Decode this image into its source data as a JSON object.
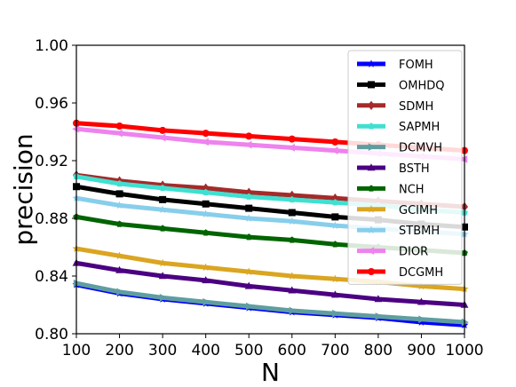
{
  "chart_data": {
    "type": "line",
    "title": "",
    "xlabel": "N",
    "ylabel": "precision",
    "xlim": [
      100,
      1000
    ],
    "ylim": [
      0.8,
      1.0
    ],
    "x": [
      100,
      200,
      300,
      400,
      500,
      600,
      700,
      800,
      900,
      1000
    ],
    "x_tick_labels": [
      "100",
      "200",
      "300",
      "400",
      "500",
      "600",
      "700",
      "800",
      "900",
      "1000"
    ],
    "y_ticks": [
      0.8,
      0.84,
      0.88,
      0.92,
      0.96,
      1.0
    ],
    "y_tick_labels": [
      "0.80",
      "0.84",
      "0.88",
      "0.92",
      "0.96",
      "1.00"
    ],
    "grid": false,
    "legend_position": "right",
    "series": [
      {
        "name": "FOMH",
        "color": "#0000ff",
        "marker": "star",
        "values": [
          0.834,
          0.828,
          0.824,
          0.821,
          0.818,
          0.815,
          0.813,
          0.811,
          0.808,
          0.806
        ]
      },
      {
        "name": "OMHDQ",
        "color": "#000000",
        "marker": "square",
        "values": [
          0.902,
          0.897,
          0.893,
          0.89,
          0.887,
          0.884,
          0.881,
          0.879,
          0.876,
          0.874
        ]
      },
      {
        "name": "SDMH",
        "color": "#a52a2a",
        "marker": "diamond",
        "values": [
          0.91,
          0.906,
          0.903,
          0.901,
          0.898,
          0.896,
          0.894,
          0.892,
          0.89,
          0.888
        ]
      },
      {
        "name": "SAPMH",
        "color": "#40e0d0",
        "marker": "pentagon",
        "values": [
          0.909,
          0.904,
          0.901,
          0.898,
          0.895,
          0.893,
          0.891,
          0.889,
          0.886,
          0.884
        ]
      },
      {
        "name": "DCMVH",
        "color": "#5f9ea0",
        "marker": "triangle-right",
        "values": [
          0.835,
          0.829,
          0.825,
          0.822,
          0.819,
          0.816,
          0.814,
          0.812,
          0.81,
          0.808
        ]
      },
      {
        "name": "BSTH",
        "color": "#4b0082",
        "marker": "triangle-up",
        "values": [
          0.849,
          0.844,
          0.84,
          0.837,
          0.833,
          0.83,
          0.827,
          0.824,
          0.822,
          0.82
        ]
      },
      {
        "name": "NCH",
        "color": "#006400",
        "marker": "pentagon",
        "values": [
          0.881,
          0.876,
          0.873,
          0.87,
          0.867,
          0.865,
          0.862,
          0.86,
          0.858,
          0.856
        ]
      },
      {
        "name": "GCIMH",
        "color": "#daa520",
        "marker": "star",
        "values": [
          0.859,
          0.854,
          0.849,
          0.846,
          0.843,
          0.84,
          0.838,
          0.836,
          0.833,
          0.831
        ]
      },
      {
        "name": "STBMH",
        "color": "#87ceeb",
        "marker": "star",
        "values": [
          0.894,
          0.889,
          0.886,
          0.883,
          0.88,
          0.878,
          0.875,
          0.873,
          0.871,
          0.869
        ]
      },
      {
        "name": "DIOR",
        "color": "#ee82ee",
        "marker": "triangle-left",
        "values": [
          0.942,
          0.939,
          0.936,
          0.933,
          0.931,
          0.929,
          0.927,
          0.925,
          0.923,
          0.921
        ]
      },
      {
        "name": "DCGMH",
        "color": "#ff0000",
        "marker": "circle",
        "values": [
          0.946,
          0.944,
          0.941,
          0.939,
          0.937,
          0.935,
          0.933,
          0.931,
          0.929,
          0.927
        ]
      }
    ]
  }
}
